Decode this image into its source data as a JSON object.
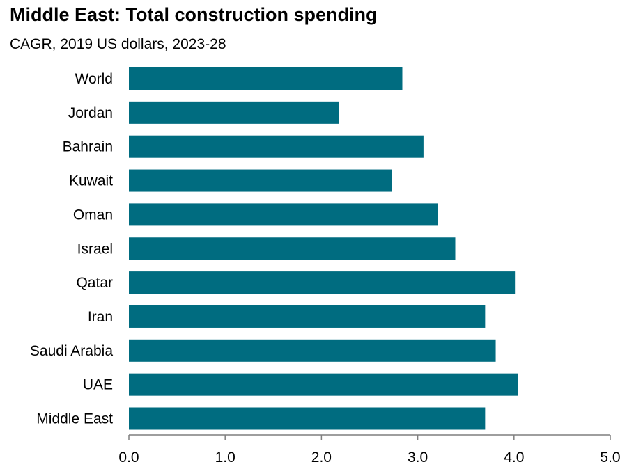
{
  "title": "Middle East: Total construction spending",
  "subtitle": "CAGR, 2019 US  dollars, 2023-28",
  "colors": {
    "bar": "#006c80",
    "axis": "#7f7f7f"
  },
  "chart_data": {
    "type": "bar",
    "orientation": "horizontal",
    "categories": [
      "World",
      "Jordan",
      "Bahrain",
      "Kuwait",
      "Oman",
      "Israel",
      "Qatar",
      "Iran",
      "Saudi Arabia",
      "UAE",
      "Middle East"
    ],
    "values": [
      2.84,
      2.18,
      3.06,
      2.73,
      3.21,
      3.39,
      4.01,
      3.7,
      3.81,
      4.04,
      3.7
    ],
    "xlim": [
      0,
      5
    ],
    "xticks": [
      "0.0",
      "1.0",
      "2.0",
      "3.0",
      "4.0",
      "5.0"
    ],
    "grid": false,
    "xlabel": "",
    "ylabel": ""
  }
}
